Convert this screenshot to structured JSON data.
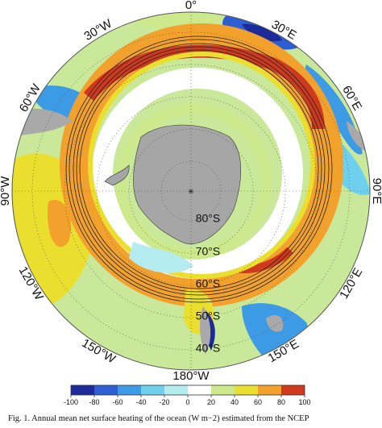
{
  "map": {
    "longitude_labels": [
      "0°",
      "30°E",
      "60°E",
      "90°E",
      "120°E",
      "150°E",
      "180°W",
      "150°W",
      "120°W",
      "90°W",
      "60°W",
      "30°W"
    ],
    "latitude_labels": [
      "80°S",
      "70°S",
      "60°S",
      "50°S",
      "40°S"
    ]
  },
  "colorbar": {
    "ticks": [
      -100,
      -80,
      -60,
      -40,
      -20,
      0,
      20,
      40,
      60,
      80,
      100
    ],
    "colors": [
      "#1c2a9a",
      "#2d5fd2",
      "#3d9be6",
      "#6fd0ee",
      "#b4ecef",
      "#ffffff",
      "#cde98e",
      "#eadf2e",
      "#f2a12c",
      "#cf3a1f"
    ]
  },
  "caption": "Fig. 1. Annual mean net surface heating of the ocean (W m−2) estimated from the NCEP"
}
